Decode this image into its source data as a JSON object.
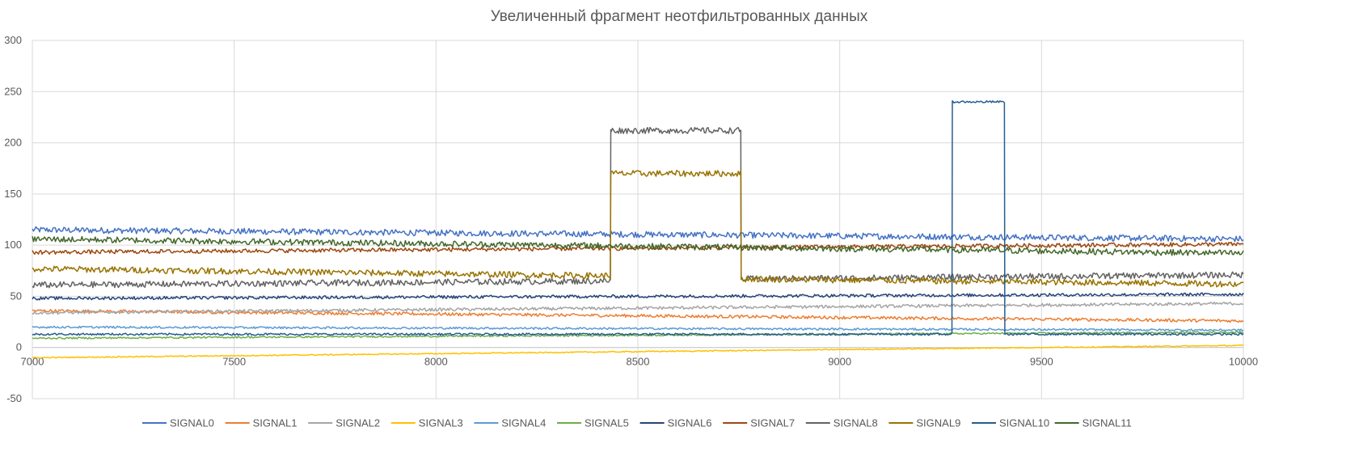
{
  "chart_data": {
    "type": "line",
    "title": "Увеличенный фрагмент неотфильтрованных данных",
    "xlabel": "",
    "ylabel": "",
    "xlim": [
      7000,
      10000
    ],
    "ylim": [
      -50,
      300
    ],
    "x_ticks": [
      7000,
      7500,
      8000,
      8500,
      9000,
      9500,
      10000
    ],
    "y_ticks": [
      -50,
      0,
      50,
      100,
      150,
      200,
      250,
      300
    ],
    "grid": true,
    "legend_position": "bottom",
    "series": [
      {
        "name": "SIGNAL0",
        "color": "#4472C4",
        "points": [
          [
            7000,
            115
          ],
          [
            10000,
            106
          ]
        ],
        "noise": 3
      },
      {
        "name": "SIGNAL1",
        "color": "#ED7D31",
        "points": [
          [
            7000,
            36
          ],
          [
            10000,
            26
          ]
        ],
        "noise": 1.5
      },
      {
        "name": "SIGNAL2",
        "color": "#A5A5A5",
        "points": [
          [
            7000,
            34
          ],
          [
            10000,
            43
          ]
        ],
        "noise": 1.5
      },
      {
        "name": "SIGNAL3",
        "color": "#FFC000",
        "points": [
          [
            7000,
            -10
          ],
          [
            10000,
            2
          ]
        ],
        "noise": 0.5
      },
      {
        "name": "SIGNAL4",
        "color": "#5B9BD5",
        "points": [
          [
            7000,
            20
          ],
          [
            10000,
            17
          ]
        ],
        "noise": 1
      },
      {
        "name": "SIGNAL5",
        "color": "#70AD47",
        "points": [
          [
            7000,
            9
          ],
          [
            10000,
            15
          ]
        ],
        "noise": 0.8
      },
      {
        "name": "SIGNAL6",
        "color": "#264478",
        "points": [
          [
            7000,
            48
          ],
          [
            10000,
            52
          ]
        ],
        "noise": 1.5
      },
      {
        "name": "SIGNAL7",
        "color": "#9E480E",
        "points": [
          [
            7000,
            93
          ],
          [
            10000,
            101
          ]
        ],
        "noise": 2
      },
      {
        "name": "SIGNAL8",
        "color": "#636363",
        "points": [
          [
            7000,
            61
          ],
          [
            8432,
            65
          ],
          [
            8433,
            212
          ],
          [
            8755,
            212
          ],
          [
            8756,
            67
          ],
          [
            10000,
            71
          ]
        ],
        "noise": 3
      },
      {
        "name": "SIGNAL9",
        "color": "#997300",
        "points": [
          [
            7000,
            77
          ],
          [
            8432,
            70
          ],
          [
            8433,
            170
          ],
          [
            8755,
            170
          ],
          [
            8756,
            67
          ],
          [
            10000,
            62
          ]
        ],
        "noise": 3
      },
      {
        "name": "SIGNAL10",
        "color": "#255E91",
        "points": [
          [
            7000,
            13
          ],
          [
            9278,
            13
          ],
          [
            9279,
            240
          ],
          [
            9408,
            240
          ],
          [
            9409,
            13
          ],
          [
            10000,
            13
          ]
        ],
        "noise": 1
      },
      {
        "name": "SIGNAL11",
        "color": "#43682B",
        "points": [
          [
            7000,
            106
          ],
          [
            10000,
            92
          ]
        ],
        "noise": 3
      }
    ]
  }
}
